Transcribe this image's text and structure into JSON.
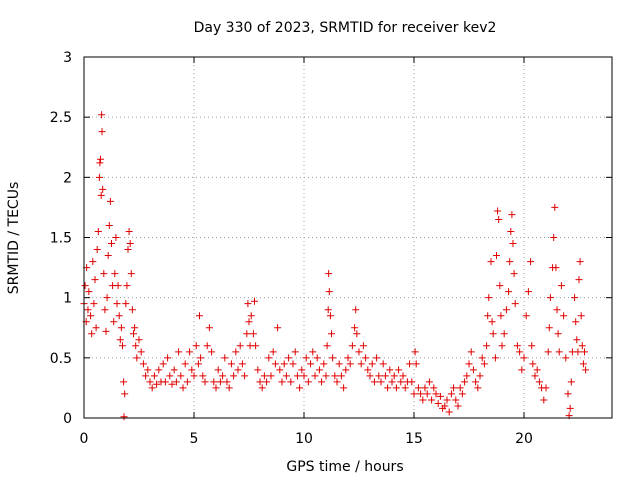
{
  "chart_data": {
    "type": "scatter",
    "title": "Day 330 of 2023, SRMTID for receiver kev2",
    "xlabel": "GPS time / hours",
    "ylabel": "SRMTID / TECUs",
    "xlim": [
      0,
      24
    ],
    "ylim": [
      0,
      3
    ],
    "xticks": [
      0,
      5,
      10,
      15,
      20
    ],
    "xtick_labels": [
      "0",
      "5",
      "10",
      "15",
      "20"
    ],
    "yticks": [
      0,
      0.5,
      1,
      1.5,
      2,
      2.5,
      3
    ],
    "ytick_labels": [
      "0",
      "0.5",
      "1",
      "1.5",
      "2",
      "2.5",
      "3"
    ],
    "grid": true,
    "marker": "+",
    "color": "#e00000",
    "series": [
      {
        "name": "kev2",
        "points": [
          [
            0.0,
            0.95
          ],
          [
            0.05,
            1.1
          ],
          [
            0.1,
            0.8
          ],
          [
            0.12,
            1.25
          ],
          [
            0.18,
            0.9
          ],
          [
            0.22,
            1.05
          ],
          [
            0.3,
            0.85
          ],
          [
            0.35,
            0.7
          ],
          [
            0.4,
            1.3
          ],
          [
            0.45,
            0.95
          ],
          [
            0.5,
            1.15
          ],
          [
            0.55,
            0.75
          ],
          [
            0.6,
            1.4
          ],
          [
            0.65,
            1.55
          ],
          [
            0.7,
            2.0
          ],
          [
            0.72,
            2.12
          ],
          [
            0.75,
            2.15
          ],
          [
            0.78,
            1.85
          ],
          [
            0.8,
            2.52
          ],
          [
            0.82,
            2.38
          ],
          [
            0.85,
            1.9
          ],
          [
            0.9,
            1.2
          ],
          [
            0.95,
            0.9
          ],
          [
            1.0,
            0.72
          ],
          [
            1.05,
            1.0
          ],
          [
            1.1,
            1.35
          ],
          [
            1.15,
            1.6
          ],
          [
            1.2,
            1.8
          ],
          [
            1.25,
            1.45
          ],
          [
            1.3,
            1.1
          ],
          [
            1.35,
            0.8
          ],
          [
            1.4,
            1.2
          ],
          [
            1.45,
            1.5
          ],
          [
            1.5,
            0.95
          ],
          [
            1.55,
            1.1
          ],
          [
            1.6,
            0.85
          ],
          [
            1.65,
            0.65
          ],
          [
            1.7,
            0.75
          ],
          [
            1.75,
            0.6
          ],
          [
            1.8,
            0.3
          ],
          [
            1.82,
            0.01
          ],
          [
            1.85,
            0.2
          ],
          [
            1.9,
            0.95
          ],
          [
            1.95,
            1.1
          ],
          [
            2.0,
            1.4
          ],
          [
            2.05,
            1.55
          ],
          [
            2.1,
            1.45
          ],
          [
            2.15,
            1.2
          ],
          [
            2.2,
            0.9
          ],
          [
            2.25,
            0.7
          ],
          [
            2.3,
            0.75
          ],
          [
            2.35,
            0.6
          ],
          [
            2.4,
            0.5
          ],
          [
            2.5,
            0.65
          ],
          [
            2.6,
            0.55
          ],
          [
            2.7,
            0.45
          ],
          [
            2.8,
            0.35
          ],
          [
            2.9,
            0.4
          ],
          [
            3.0,
            0.3
          ],
          [
            3.1,
            0.25
          ],
          [
            3.2,
            0.35
          ],
          [
            3.3,
            0.28
          ],
          [
            3.4,
            0.4
          ],
          [
            3.5,
            0.3
          ],
          [
            3.6,
            0.45
          ],
          [
            3.7,
            0.3
          ],
          [
            3.8,
            0.5
          ],
          [
            3.9,
            0.35
          ],
          [
            4.0,
            0.28
          ],
          [
            4.1,
            0.4
          ],
          [
            4.2,
            0.3
          ],
          [
            4.3,
            0.55
          ],
          [
            4.4,
            0.35
          ],
          [
            4.5,
            0.25
          ],
          [
            4.6,
            0.45
          ],
          [
            4.7,
            0.3
          ],
          [
            4.8,
            0.55
          ],
          [
            4.9,
            0.4
          ],
          [
            5.0,
            0.35
          ],
          [
            5.1,
            0.6
          ],
          [
            5.2,
            0.45
          ],
          [
            5.25,
            0.85
          ],
          [
            5.3,
            0.5
          ],
          [
            5.4,
            0.35
          ],
          [
            5.5,
            0.3
          ],
          [
            5.6,
            0.6
          ],
          [
            5.7,
            0.75
          ],
          [
            5.8,
            0.55
          ],
          [
            5.9,
            0.3
          ],
          [
            6.0,
            0.25
          ],
          [
            6.1,
            0.4
          ],
          [
            6.2,
            0.3
          ],
          [
            6.3,
            0.35
          ],
          [
            6.4,
            0.5
          ],
          [
            6.5,
            0.3
          ],
          [
            6.6,
            0.25
          ],
          [
            6.7,
            0.45
          ],
          [
            6.8,
            0.35
          ],
          [
            6.9,
            0.55
          ],
          [
            7.0,
            0.4
          ],
          [
            7.1,
            0.6
          ],
          [
            7.2,
            0.45
          ],
          [
            7.3,
            0.35
          ],
          [
            7.4,
            0.7
          ],
          [
            7.45,
            0.95
          ],
          [
            7.5,
            0.8
          ],
          [
            7.55,
            0.6
          ],
          [
            7.6,
            0.85
          ],
          [
            7.7,
            0.7
          ],
          [
            7.75,
            0.97
          ],
          [
            7.8,
            0.6
          ],
          [
            7.9,
            0.4
          ],
          [
            8.0,
            0.3
          ],
          [
            8.1,
            0.25
          ],
          [
            8.2,
            0.35
          ],
          [
            8.3,
            0.3
          ],
          [
            8.4,
            0.5
          ],
          [
            8.5,
            0.35
          ],
          [
            8.6,
            0.55
          ],
          [
            8.7,
            0.45
          ],
          [
            8.8,
            0.75
          ],
          [
            8.9,
            0.4
          ],
          [
            9.0,
            0.3
          ],
          [
            9.1,
            0.45
          ],
          [
            9.2,
            0.35
          ],
          [
            9.3,
            0.5
          ],
          [
            9.4,
            0.3
          ],
          [
            9.5,
            0.45
          ],
          [
            9.6,
            0.55
          ],
          [
            9.7,
            0.35
          ],
          [
            9.8,
            0.25
          ],
          [
            9.9,
            0.4
          ],
          [
            10.0,
            0.35
          ],
          [
            10.1,
            0.5
          ],
          [
            10.2,
            0.3
          ],
          [
            10.3,
            0.45
          ],
          [
            10.4,
            0.55
          ],
          [
            10.5,
            0.35
          ],
          [
            10.6,
            0.5
          ],
          [
            10.7,
            0.4
          ],
          [
            10.8,
            0.3
          ],
          [
            10.9,
            0.45
          ],
          [
            11.0,
            0.35
          ],
          [
            11.05,
            0.6
          ],
          [
            11.1,
            0.9
          ],
          [
            11.12,
            1.2
          ],
          [
            11.15,
            1.05
          ],
          [
            11.2,
            0.85
          ],
          [
            11.25,
            0.7
          ],
          [
            11.3,
            0.5
          ],
          [
            11.4,
            0.35
          ],
          [
            11.5,
            0.3
          ],
          [
            11.6,
            0.45
          ],
          [
            11.7,
            0.35
          ],
          [
            11.8,
            0.25
          ],
          [
            11.9,
            0.4
          ],
          [
            12.0,
            0.5
          ],
          [
            12.1,
            0.45
          ],
          [
            12.2,
            0.6
          ],
          [
            12.3,
            0.75
          ],
          [
            12.35,
            0.9
          ],
          [
            12.4,
            0.7
          ],
          [
            12.5,
            0.55
          ],
          [
            12.6,
            0.45
          ],
          [
            12.7,
            0.6
          ],
          [
            12.8,
            0.5
          ],
          [
            12.9,
            0.4
          ],
          [
            13.0,
            0.35
          ],
          [
            13.1,
            0.45
          ],
          [
            13.2,
            0.3
          ],
          [
            13.3,
            0.5
          ],
          [
            13.4,
            0.35
          ],
          [
            13.5,
            0.3
          ],
          [
            13.6,
            0.45
          ],
          [
            13.7,
            0.35
          ],
          [
            13.8,
            0.25
          ],
          [
            13.9,
            0.4
          ],
          [
            14.0,
            0.3
          ],
          [
            14.1,
            0.35
          ],
          [
            14.2,
            0.25
          ],
          [
            14.3,
            0.4
          ],
          [
            14.4,
            0.3
          ],
          [
            14.5,
            0.35
          ],
          [
            14.6,
            0.25
          ],
          [
            14.7,
            0.3
          ],
          [
            14.8,
            0.45
          ],
          [
            14.9,
            0.3
          ],
          [
            15.0,
            0.2
          ],
          [
            15.05,
            0.55
          ],
          [
            15.1,
            0.45
          ],
          [
            15.2,
            0.25
          ],
          [
            15.3,
            0.2
          ],
          [
            15.4,
            0.15
          ],
          [
            15.5,
            0.25
          ],
          [
            15.6,
            0.2
          ],
          [
            15.7,
            0.3
          ],
          [
            15.8,
            0.15
          ],
          [
            15.9,
            0.25
          ],
          [
            16.0,
            0.2
          ],
          [
            16.1,
            0.12
          ],
          [
            16.2,
            0.18
          ],
          [
            16.3,
            0.08
          ],
          [
            16.4,
            0.1
          ],
          [
            16.5,
            0.15
          ],
          [
            16.6,
            0.05
          ],
          [
            16.7,
            0.2
          ],
          [
            16.8,
            0.25
          ],
          [
            16.9,
            0.15
          ],
          [
            17.0,
            0.1
          ],
          [
            17.1,
            0.25
          ],
          [
            17.2,
            0.2
          ],
          [
            17.3,
            0.3
          ],
          [
            17.4,
            0.35
          ],
          [
            17.5,
            0.45
          ],
          [
            17.6,
            0.55
          ],
          [
            17.7,
            0.4
          ],
          [
            17.8,
            0.3
          ],
          [
            17.9,
            0.25
          ],
          [
            18.0,
            0.35
          ],
          [
            18.1,
            0.5
          ],
          [
            18.2,
            0.45
          ],
          [
            18.3,
            0.6
          ],
          [
            18.35,
            0.85
          ],
          [
            18.4,
            1.0
          ],
          [
            18.5,
            1.3
          ],
          [
            18.55,
            0.8
          ],
          [
            18.6,
            0.7
          ],
          [
            18.7,
            0.5
          ],
          [
            18.75,
            1.35
          ],
          [
            18.8,
            1.72
          ],
          [
            18.85,
            1.65
          ],
          [
            18.9,
            1.1
          ],
          [
            18.95,
            0.85
          ],
          [
            19.0,
            0.6
          ],
          [
            19.1,
            0.7
          ],
          [
            19.2,
            0.9
          ],
          [
            19.3,
            1.05
          ],
          [
            19.35,
            1.3
          ],
          [
            19.4,
            1.55
          ],
          [
            19.45,
            1.69
          ],
          [
            19.5,
            1.45
          ],
          [
            19.55,
            1.2
          ],
          [
            19.6,
            0.95
          ],
          [
            19.7,
            0.6
          ],
          [
            19.8,
            0.55
          ],
          [
            19.9,
            0.4
          ],
          [
            20.0,
            0.5
          ],
          [
            20.1,
            0.85
          ],
          [
            20.2,
            1.05
          ],
          [
            20.3,
            1.3
          ],
          [
            20.35,
            0.6
          ],
          [
            20.4,
            0.45
          ],
          [
            20.5,
            0.35
          ],
          [
            20.6,
            0.4
          ],
          [
            20.7,
            0.3
          ],
          [
            20.8,
            0.25
          ],
          [
            20.9,
            0.15
          ],
          [
            21.0,
            0.25
          ],
          [
            21.1,
            0.55
          ],
          [
            21.15,
            0.75
          ],
          [
            21.2,
            1.0
          ],
          [
            21.3,
            1.25
          ],
          [
            21.35,
            1.5
          ],
          [
            21.4,
            1.75
          ],
          [
            21.45,
            1.25
          ],
          [
            21.5,
            0.9
          ],
          [
            21.55,
            0.7
          ],
          [
            21.6,
            0.55
          ],
          [
            21.7,
            1.1
          ],
          [
            21.8,
            0.85
          ],
          [
            21.9,
            0.5
          ],
          [
            22.0,
            0.2
          ],
          [
            22.05,
            0.02
          ],
          [
            22.1,
            0.08
          ],
          [
            22.15,
            0.3
          ],
          [
            22.2,
            0.55
          ],
          [
            22.3,
            1.0
          ],
          [
            22.35,
            0.8
          ],
          [
            22.4,
            0.65
          ],
          [
            22.45,
            0.55
          ],
          [
            22.5,
            1.15
          ],
          [
            22.55,
            1.3
          ],
          [
            22.6,
            0.85
          ],
          [
            22.65,
            0.6
          ],
          [
            22.7,
            0.45
          ],
          [
            22.75,
            0.55
          ],
          [
            22.8,
            0.4
          ]
        ]
      }
    ]
  }
}
